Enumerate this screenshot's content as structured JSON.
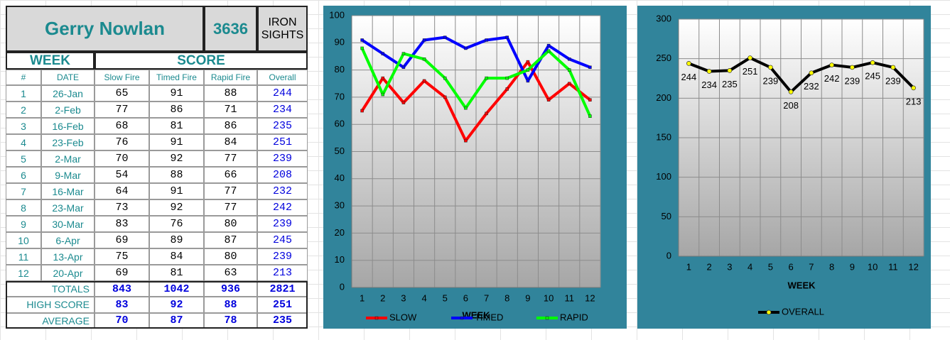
{
  "table": {
    "name": "Gerry Nowlan",
    "id": "3636",
    "category": "IRON SIGHTS",
    "groups": [
      "WEEK",
      "SCORE"
    ],
    "columns": [
      "#",
      "DATE",
      "Slow Fire",
      "Timed Fire",
      "Rapid Fire",
      "Overall"
    ],
    "rows": [
      [
        1,
        "26-Jan",
        65,
        91,
        88,
        244
      ],
      [
        2,
        "2-Feb",
        77,
        86,
        71,
        234
      ],
      [
        3,
        "16-Feb",
        68,
        81,
        86,
        235
      ],
      [
        4,
        "23-Feb",
        76,
        91,
        84,
        251
      ],
      [
        5,
        "2-Mar",
        70,
        92,
        77,
        239
      ],
      [
        6,
        "9-Mar",
        54,
        88,
        66,
        208
      ],
      [
        7,
        "16-Mar",
        64,
        91,
        77,
        232
      ],
      [
        8,
        "23-Mar",
        73,
        92,
        77,
        242
      ],
      [
        9,
        "30-Mar",
        83,
        76,
        80,
        239
      ],
      [
        10,
        "6-Apr",
        69,
        89,
        87,
        245
      ],
      [
        11,
        "13-Apr",
        75,
        84,
        80,
        239
      ],
      [
        12,
        "20-Apr",
        69,
        81,
        63,
        213
      ]
    ],
    "summary": [
      {
        "label": "TOTALS",
        "values": [
          843,
          1042,
          936,
          2821
        ]
      },
      {
        "label": "HIGH SCORE",
        "values": [
          83,
          92,
          88,
          251
        ]
      },
      {
        "label": "AVERAGE",
        "values": [
          70,
          87,
          78,
          235
        ]
      }
    ]
  },
  "chart_data": [
    {
      "type": "line",
      "x_label": "WEEK",
      "categories": [
        1,
        2,
        3,
        4,
        5,
        6,
        7,
        8,
        9,
        10,
        11,
        12
      ],
      "ylim": [
        0,
        100
      ],
      "yticks": [
        0,
        10,
        20,
        30,
        40,
        50,
        60,
        70,
        80,
        90,
        100
      ],
      "grid": true,
      "series": [
        {
          "name": "SLOW",
          "color": "#ff0000",
          "values": [
            65,
            77,
            68,
            76,
            70,
            54,
            64,
            73,
            83,
            69,
            75,
            69
          ]
        },
        {
          "name": "TIMED",
          "color": "#0000ff",
          "values": [
            91,
            86,
            81,
            91,
            92,
            88,
            91,
            92,
            76,
            89,
            84,
            81
          ]
        },
        {
          "name": "RAPID",
          "color": "#00ff00",
          "values": [
            88,
            71,
            86,
            84,
            77,
            66,
            77,
            77,
            80,
            87,
            80,
            63
          ]
        }
      ]
    },
    {
      "type": "line",
      "x_label": "WEEK",
      "categories": [
        1,
        2,
        3,
        4,
        5,
        6,
        7,
        8,
        9,
        10,
        11,
        12
      ],
      "ylim": [
        0,
        300
      ],
      "yticks": [
        0,
        50,
        100,
        150,
        200,
        250,
        300
      ],
      "grid": true,
      "data_labels": true,
      "series": [
        {
          "name": "OVERALL",
          "color": "#000000",
          "marker_color": "#ffff00",
          "values": [
            244,
            234,
            235,
            251,
            239,
            208,
            232,
            242,
            239,
            245,
            239,
            213
          ]
        }
      ]
    }
  ]
}
